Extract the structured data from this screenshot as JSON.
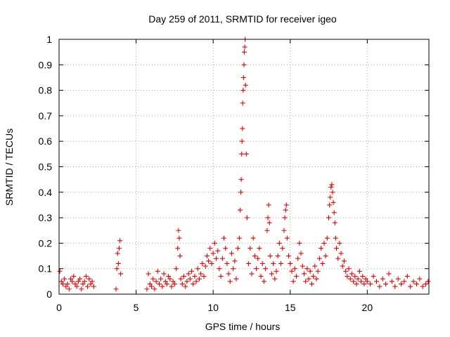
{
  "chart_data": {
    "type": "scatter",
    "title": "Day 259 of 2011, SRMTID for receiver igeo",
    "xlabel": "GPS time / hours",
    "ylabel": "SRMTID / TECUs",
    "xlim": [
      0,
      24
    ],
    "ylim": [
      0,
      1
    ],
    "x_ticks": [
      "0",
      "5",
      "10",
      "15",
      "20"
    ],
    "y_ticks": [
      "0",
      "0.1",
      "0.2",
      "0.3",
      "0.4",
      "0.5",
      "0.6",
      "0.7",
      "0.8",
      "0.9",
      "1"
    ],
    "grid": true,
    "marker": "+",
    "color": "#ee0000",
    "series": [
      {
        "x": [
          0.05,
          0.15,
          0.25,
          0.35,
          0.45,
          0.55,
          0.65,
          0.75,
          0.85,
          0.95,
          1.05,
          1.15,
          1.25,
          1.35,
          1.45,
          1.55,
          1.65,
          1.75,
          1.85,
          1.95,
          2.05,
          2.15,
          2.25,
          3.7,
          3.75,
          3.8,
          3.85,
          3.9,
          3.95,
          4.0,
          5.7,
          5.8,
          5.9,
          6.0,
          6.1,
          6.2,
          6.3,
          6.4,
          6.5,
          6.6,
          6.7,
          6.8,
          6.9,
          7.0,
          7.1,
          7.2,
          7.3,
          7.4,
          7.5,
          7.6,
          7.7,
          7.75,
          7.8,
          7.85,
          7.9,
          8.0,
          8.1,
          8.2,
          8.3,
          8.4,
          8.5,
          8.6,
          8.7,
          8.8,
          8.9,
          9.0,
          9.1,
          9.2,
          9.3,
          9.4,
          9.5,
          9.6,
          9.7,
          9.8,
          9.9,
          10.0,
          10.1,
          10.2,
          10.3,
          10.4,
          10.5,
          10.6,
          10.7,
          10.8,
          10.9,
          11.0,
          11.1,
          11.2,
          11.3,
          11.4,
          11.5,
          11.6,
          11.7,
          11.75,
          11.8,
          11.82,
          11.85,
          11.87,
          11.9,
          11.92,
          11.95,
          11.97,
          12.0,
          12.02,
          12.05,
          12.07,
          12.1,
          12.15,
          12.2,
          12.3,
          12.4,
          12.5,
          12.6,
          12.7,
          12.8,
          12.9,
          13.0,
          13.1,
          13.2,
          13.3,
          13.4,
          13.5,
          13.55,
          13.6,
          13.65,
          13.7,
          13.8,
          13.9,
          14.0,
          14.1,
          14.2,
          14.3,
          14.4,
          14.5,
          14.6,
          14.65,
          14.7,
          14.75,
          14.8,
          14.9,
          15.0,
          15.1,
          15.2,
          15.3,
          15.4,
          15.5,
          15.6,
          15.7,
          15.8,
          15.9,
          16.0,
          16.1,
          16.2,
          16.3,
          16.4,
          16.5,
          16.6,
          16.7,
          16.8,
          16.9,
          17.0,
          17.1,
          17.2,
          17.3,
          17.4,
          17.5,
          17.55,
          17.6,
          17.65,
          17.7,
          17.75,
          17.8,
          17.85,
          17.9,
          17.95,
          18.0,
          18.1,
          18.2,
          18.3,
          18.4,
          18.5,
          18.6,
          18.7,
          18.8,
          18.9,
          19.0,
          19.1,
          19.2,
          19.3,
          19.4,
          19.5,
          19.6,
          19.7,
          19.8,
          19.9,
          20.0,
          20.2,
          20.4,
          20.6,
          20.8,
          21.0,
          21.2,
          21.4,
          21.6,
          21.8,
          22.0,
          22.2,
          22.4,
          22.6,
          22.8,
          23.0,
          23.2,
          23.4,
          23.6,
          23.8,
          23.95
        ],
        "y": [
          0.09,
          0.05,
          0.04,
          0.06,
          0.03,
          0.04,
          0.02,
          0.06,
          0.05,
          0.07,
          0.04,
          0.03,
          0.05,
          0.06,
          0.02,
          0.04,
          0.05,
          0.07,
          0.03,
          0.06,
          0.04,
          0.05,
          0.03,
          0.02,
          0.1,
          0.16,
          0.12,
          0.18,
          0.21,
          0.08,
          0.02,
          0.08,
          0.04,
          0.03,
          0.06,
          0.02,
          0.05,
          0.09,
          0.04,
          0.06,
          0.03,
          0.08,
          0.05,
          0.04,
          0.07,
          0.06,
          0.03,
          0.05,
          0.04,
          0.1,
          0.18,
          0.25,
          0.22,
          0.15,
          0.06,
          0.04,
          0.07,
          0.03,
          0.05,
          0.08,
          0.06,
          0.09,
          0.04,
          0.07,
          0.05,
          0.1,
          0.06,
          0.08,
          0.12,
          0.07,
          0.11,
          0.15,
          0.13,
          0.18,
          0.12,
          0.16,
          0.2,
          0.14,
          0.17,
          0.1,
          0.07,
          0.14,
          0.22,
          0.18,
          0.12,
          0.08,
          0.05,
          0.16,
          0.1,
          0.13,
          0.06,
          0.18,
          0.22,
          0.33,
          0.4,
          0.45,
          0.55,
          0.6,
          0.65,
          0.75,
          0.8,
          0.85,
          0.9,
          0.95,
          0.97,
          1.0,
          0.82,
          0.55,
          0.3,
          0.12,
          0.18,
          0.08,
          0.22,
          0.15,
          0.1,
          0.14,
          0.18,
          0.07,
          0.12,
          0.05,
          0.1,
          0.25,
          0.3,
          0.35,
          0.28,
          0.15,
          0.08,
          0.12,
          0.06,
          0.09,
          0.15,
          0.2,
          0.12,
          0.18,
          0.25,
          0.3,
          0.33,
          0.35,
          0.22,
          0.15,
          0.12,
          0.09,
          0.05,
          0.1,
          0.07,
          0.14,
          0.2,
          0.16,
          0.11,
          0.08,
          0.05,
          0.1,
          0.06,
          0.09,
          0.04,
          0.07,
          0.11,
          0.06,
          0.09,
          0.14,
          0.18,
          0.12,
          0.2,
          0.15,
          0.22,
          0.3,
          0.35,
          0.38,
          0.42,
          0.43,
          0.4,
          0.36,
          0.32,
          0.28,
          0.22,
          0.18,
          0.14,
          0.2,
          0.16,
          0.11,
          0.13,
          0.09,
          0.07,
          0.1,
          0.06,
          0.08,
          0.05,
          0.07,
          0.04,
          0.06,
          0.09,
          0.05,
          0.07,
          0.04,
          0.06,
          0.05,
          0.04,
          0.07,
          0.05,
          0.03,
          0.06,
          0.04,
          0.08,
          0.05,
          0.03,
          0.06,
          0.04,
          0.05,
          0.07,
          0.03,
          0.05,
          0.04,
          0.06,
          0.03,
          0.04,
          0.05
        ]
      }
    ]
  }
}
